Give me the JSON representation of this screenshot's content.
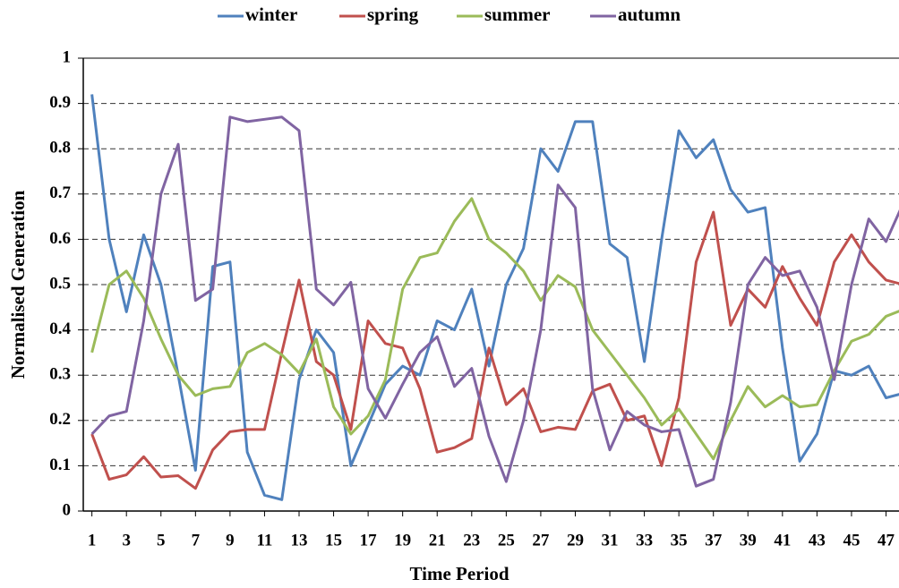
{
  "chart_data": {
    "type": "line",
    "xlabel": "Time Period",
    "ylabel": "Normalised Generation",
    "x": [
      1,
      2,
      3,
      4,
      5,
      6,
      7,
      8,
      9,
      10,
      11,
      12,
      13,
      14,
      15,
      16,
      17,
      18,
      19,
      20,
      21,
      22,
      23,
      24,
      25,
      26,
      27,
      28,
      29,
      30,
      31,
      32,
      33,
      34,
      35,
      36,
      37,
      38,
      39,
      40,
      41,
      42,
      43,
      44,
      45,
      46,
      47,
      48
    ],
    "xlim": [
      0.5,
      48.5
    ],
    "xticks": [
      1,
      3,
      5,
      7,
      9,
      11,
      13,
      15,
      17,
      19,
      21,
      23,
      25,
      27,
      29,
      31,
      33,
      35,
      37,
      39,
      41,
      43,
      45,
      47
    ],
    "ylim": [
      0,
      1
    ],
    "yticks": [
      0,
      0.1,
      0.2,
      0.3,
      0.4,
      0.5,
      0.6,
      0.7,
      0.8,
      0.9,
      1
    ],
    "grid": true,
    "legend": "top",
    "series": [
      {
        "name": "winter",
        "color": "#4f81bd",
        "values": [
          0.92,
          0.6,
          0.44,
          0.61,
          0.5,
          0.3,
          0.09,
          0.54,
          0.55,
          0.13,
          0.035,
          0.025,
          0.29,
          0.4,
          0.35,
          0.1,
          0.19,
          0.28,
          0.32,
          0.3,
          0.42,
          0.4,
          0.49,
          0.32,
          0.5,
          0.58,
          0.8,
          0.75,
          0.86,
          0.86,
          0.59,
          0.56,
          0.33,
          0.6,
          0.84,
          0.78,
          0.82,
          0.71,
          0.66,
          0.67,
          0.36,
          0.11,
          0.17,
          0.31,
          0.3,
          0.32,
          0.25,
          0.26
        ]
      },
      {
        "name": "spring",
        "color": "#c0504d",
        "values": [
          0.17,
          0.07,
          0.08,
          0.12,
          0.075,
          0.078,
          0.05,
          0.135,
          0.175,
          0.18,
          0.18,
          0.35,
          0.51,
          0.33,
          0.3,
          0.18,
          0.42,
          0.37,
          0.36,
          0.27,
          0.13,
          0.14,
          0.16,
          0.36,
          0.235,
          0.27,
          0.175,
          0.185,
          0.18,
          0.265,
          0.28,
          0.2,
          0.21,
          0.1,
          0.25,
          0.55,
          0.66,
          0.41,
          0.49,
          0.45,
          0.54,
          0.47,
          0.41,
          0.55,
          0.61,
          0.55,
          0.51,
          0.5
        ]
      },
      {
        "name": "summer",
        "color": "#9bbb59",
        "values": [
          0.35,
          0.5,
          0.53,
          0.47,
          0.38,
          0.3,
          0.255,
          0.27,
          0.275,
          0.35,
          0.37,
          0.345,
          0.305,
          0.38,
          0.23,
          0.17,
          0.21,
          0.29,
          0.49,
          0.56,
          0.57,
          0.64,
          0.69,
          0.6,
          0.57,
          0.53,
          0.465,
          0.52,
          0.495,
          0.4,
          0.35,
          0.3,
          0.25,
          0.19,
          0.225,
          0.17,
          0.115,
          0.2,
          0.275,
          0.23,
          0.255,
          0.23,
          0.235,
          0.31,
          0.375,
          0.39,
          0.43,
          0.445
        ]
      },
      {
        "name": "autumn",
        "color": "#8064a2",
        "values": [
          0.17,
          0.21,
          0.22,
          0.42,
          0.7,
          0.81,
          0.465,
          0.49,
          0.87,
          0.86,
          0.865,
          0.87,
          0.84,
          0.49,
          0.455,
          0.505,
          0.27,
          0.205,
          0.28,
          0.35,
          0.385,
          0.275,
          0.315,
          0.165,
          0.065,
          0.2,
          0.4,
          0.72,
          0.67,
          0.27,
          0.135,
          0.22,
          0.19,
          0.175,
          0.18,
          0.055,
          0.07,
          0.24,
          0.5,
          0.56,
          0.52,
          0.53,
          0.45,
          0.29,
          0.5,
          0.645,
          0.595,
          0.68
        ]
      }
    ]
  }
}
